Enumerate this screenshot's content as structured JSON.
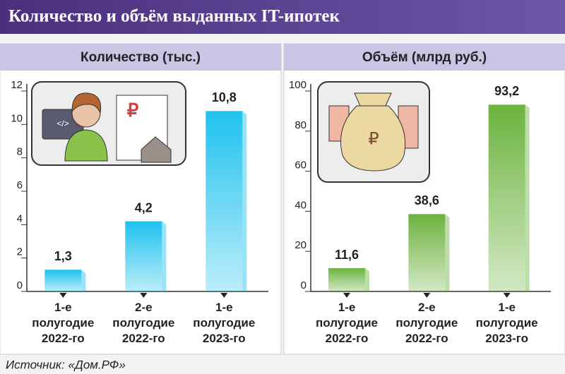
{
  "title": "Количество и объём выданных IT-ипотек",
  "source": "Источник: «Дом.РФ»",
  "chart_data": [
    {
      "type": "bar",
      "title": "Количество (тыс.)",
      "categories": [
        "1-е полугодие 2022-го",
        "2-е полугодие 2022-го",
        "1-е полугодие 2023-го"
      ],
      "values": [
        1.3,
        4.2,
        10.8
      ],
      "value_labels": [
        "1,3",
        "4,2",
        "10,8"
      ],
      "color": "#1fc2ee",
      "ylim": [
        0,
        12
      ],
      "yticks": [
        0,
        2,
        4,
        6,
        8,
        10,
        12
      ],
      "grid": false
    },
    {
      "type": "bar",
      "title": "Объём (млрд руб.)",
      "categories": [
        "1-е полугодие 2022-го",
        "2-е полугодие 2022-го",
        "1-е полугодие 2023-го"
      ],
      "values": [
        11.6,
        38.6,
        93.2
      ],
      "value_labels": [
        "11,6",
        "38,6",
        "93,2"
      ],
      "color": "#6cb33e",
      "ylim": [
        0,
        100
      ],
      "yticks": [
        0,
        20,
        40,
        60,
        80,
        100
      ],
      "grid": false
    }
  ]
}
